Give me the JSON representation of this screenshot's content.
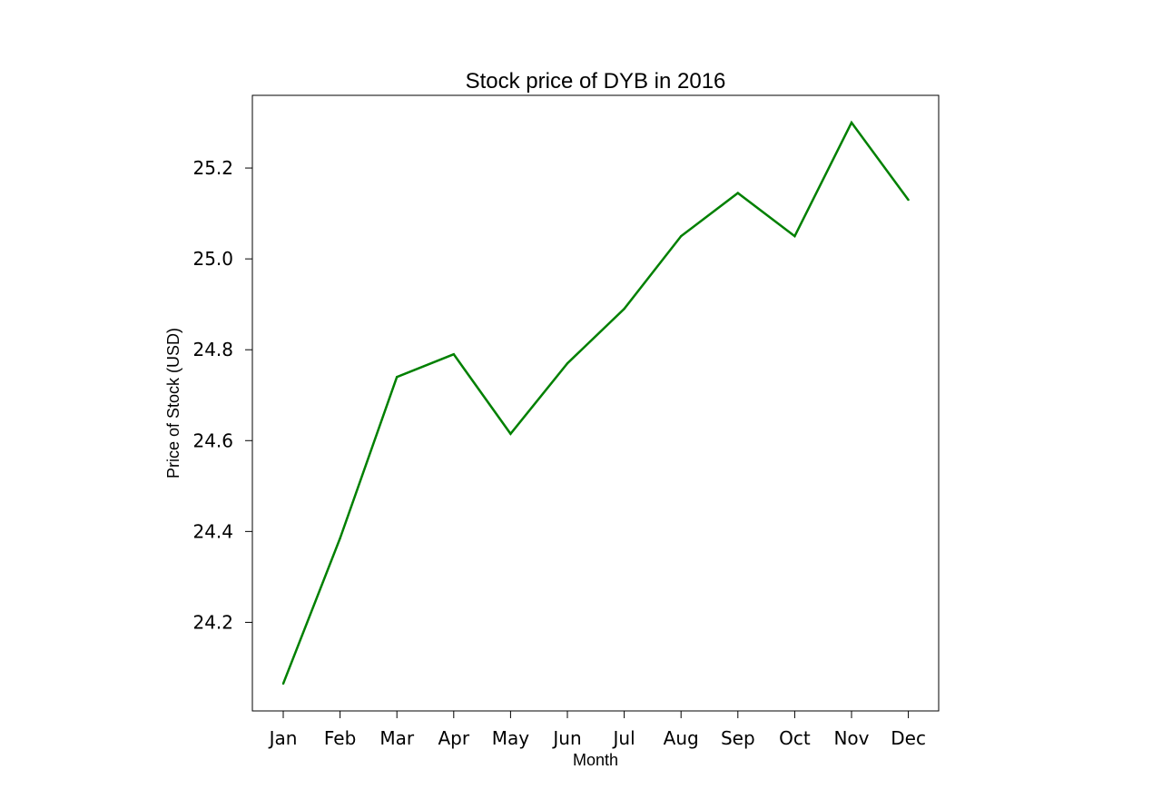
{
  "chart_data": {
    "type": "line",
    "title": "Stock price of DYB in 2016",
    "xlabel": "Month",
    "ylabel": "Price of Stock (USD)",
    "categories": [
      "Jan",
      "Feb",
      "Mar",
      "Apr",
      "May",
      "Jun",
      "Jul",
      "Aug",
      "Sep",
      "Oct",
      "Nov",
      "Dec"
    ],
    "series": [
      {
        "values": [
          24.065,
          24.385,
          24.74,
          24.79,
          24.615,
          24.77,
          24.89,
          25.05,
          25.145,
          25.05,
          25.3,
          25.13
        ],
        "color": "#008000"
      }
    ],
    "ylim": [
      24.005,
      25.36
    ],
    "yticks": [
      24.2,
      24.4,
      24.6,
      24.8,
      25.0,
      25.2
    ],
    "ytick_labels": [
      "24.2",
      "24.4",
      "24.6",
      "24.8",
      "25.0",
      "25.2"
    ],
    "grid": false,
    "legend": "none"
  }
}
